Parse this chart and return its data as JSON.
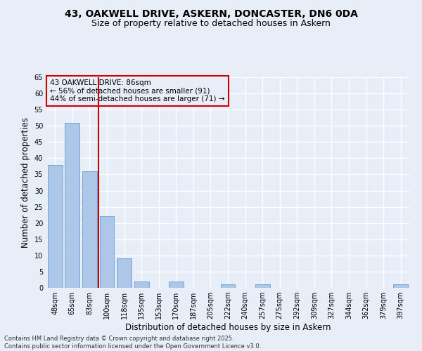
{
  "title_line1": "43, OAKWELL DRIVE, ASKERN, DONCASTER, DN6 0DA",
  "title_line2": "Size of property relative to detached houses in Askern",
  "xlabel": "Distribution of detached houses by size in Askern",
  "ylabel": "Number of detached properties",
  "bar_labels": [
    "48sqm",
    "65sqm",
    "83sqm",
    "100sqm",
    "118sqm",
    "135sqm",
    "153sqm",
    "170sqm",
    "187sqm",
    "205sqm",
    "222sqm",
    "240sqm",
    "257sqm",
    "275sqm",
    "292sqm",
    "309sqm",
    "327sqm",
    "344sqm",
    "362sqm",
    "379sqm",
    "397sqm"
  ],
  "bar_values": [
    38,
    51,
    36,
    22,
    9,
    2,
    0,
    2,
    0,
    0,
    1,
    0,
    1,
    0,
    0,
    0,
    0,
    0,
    0,
    0,
    1
  ],
  "bar_color": "#aec6e8",
  "bar_edge_color": "#5a9fd4",
  "ylim": [
    0,
    65
  ],
  "yticks": [
    0,
    5,
    10,
    15,
    20,
    25,
    30,
    35,
    40,
    45,
    50,
    55,
    60,
    65
  ],
  "vline_color": "#cc0000",
  "annotation_title": "43 OAKWELL DRIVE: 86sqm",
  "annotation_line2": "← 56% of detached houses are smaller (91)",
  "annotation_line3": "44% of semi-detached houses are larger (71) →",
  "annotation_box_color": "#cc0000",
  "footer_line1": "Contains HM Land Registry data © Crown copyright and database right 2025.",
  "footer_line2": "Contains public sector information licensed under the Open Government Licence v3.0.",
  "bg_color": "#e8eef8",
  "grid_color": "#ffffff",
  "title_fontsize": 10,
  "subtitle_fontsize": 9,
  "tick_fontsize": 7,
  "label_fontsize": 8.5,
  "annotation_fontsize": 7.5,
  "footer_fontsize": 6
}
